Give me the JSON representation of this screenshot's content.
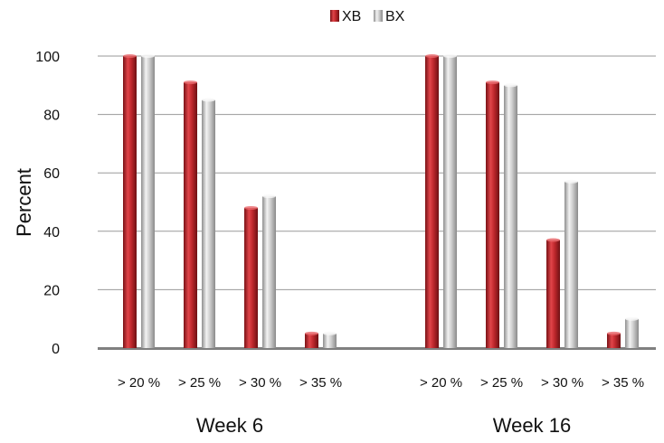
{
  "chart_data": {
    "type": "bar",
    "title": "",
    "xlabel": "",
    "ylabel": "Percent",
    "ylim": [
      0,
      100
    ],
    "yticks": [
      0,
      20,
      40,
      60,
      80,
      100
    ],
    "grid": true,
    "legend_position": "top-center",
    "groups": [
      {
        "label": "Week 6",
        "categories": [
          "> 20 %",
          "> 25 %",
          "> 30 %",
          "> 35 %"
        ],
        "series": [
          {
            "name": "XB",
            "values": [
              100,
              91,
              48,
              5
            ]
          },
          {
            "name": "BX",
            "values": [
              100,
              85,
              52,
              5
            ]
          }
        ]
      },
      {
        "label": "Week 16",
        "categories": [
          "> 20 %",
          "> 25 %",
          "> 30 %",
          "> 35 %"
        ],
        "series": [
          {
            "name": "XB",
            "values": [
              100,
              91,
              37,
              5
            ]
          },
          {
            "name": "BX",
            "values": [
              100,
              90,
              57,
              10
            ]
          }
        ]
      }
    ],
    "legend": [
      "XB",
      "BX"
    ],
    "colors": {
      "XB": "#c0282d",
      "BX": "#c8c8c8",
      "grid": "#9a9a9a",
      "axis": "#7f7f7f"
    }
  }
}
